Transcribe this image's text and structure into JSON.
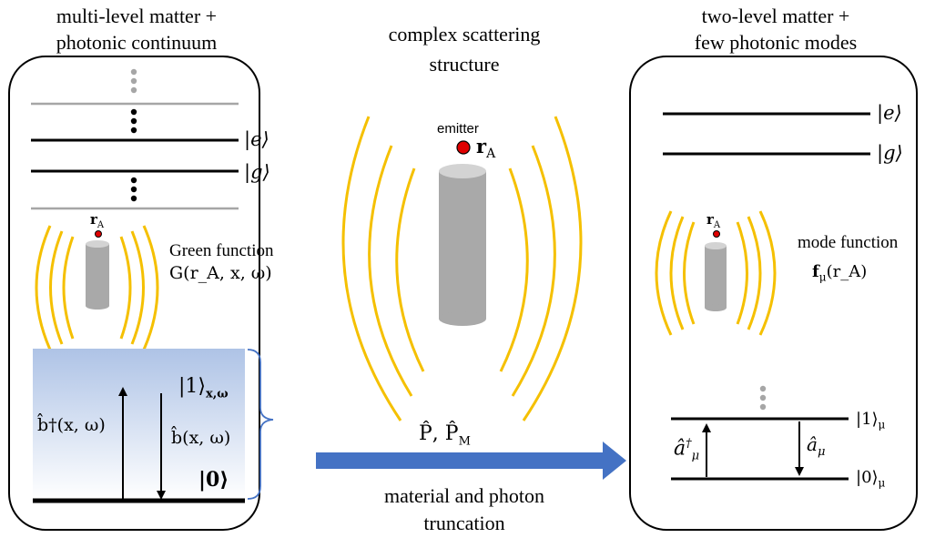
{
  "left_panel": {
    "title_line1": "multi-level matter +",
    "title_line2": "photonic continuum",
    "ket_e": "|e⟩",
    "ket_g": "|g⟩",
    "emitter_pos": "r",
    "emitter_pos_sub": "A",
    "green_label": "Green function",
    "green_expr": "G(r_A, x, ω)",
    "ket_one": "|1⟩",
    "ket_one_sub": "x,ω",
    "ket_zero": "|0⟩",
    "creation_op": "b̂†(x, ω)",
    "annihilation_op": "b̂(x, ω)"
  },
  "center_panel": {
    "title_line1": "complex scattering",
    "title_line2": "structure",
    "emitter_label": "emitter",
    "emitter_pos": "r",
    "emitter_pos_sub": "A",
    "projectors": "P̂, P̂",
    "projectors_sub": "M",
    "arrow_caption_line1": "material and photon",
    "arrow_caption_line2": "truncation"
  },
  "right_panel": {
    "title_line1": "two-level matter +",
    "title_line2": "few photonic modes",
    "ket_e": "|e⟩",
    "ket_g": "|g⟩",
    "emitter_pos": "r",
    "emitter_pos_sub": "A",
    "mode_label": "mode function",
    "mode_expr": "f",
    "mode_expr_sub": "μ",
    "mode_expr_arg": "(r_A)",
    "ket_one": "|1⟩",
    "ket_one_sub": "μ",
    "ket_zero": "|0⟩",
    "ket_zero_sub": "μ",
    "creation_op": "â",
    "creation_op_sup": "†",
    "creation_op_sub": "μ",
    "annihilation_op": "â",
    "annihilation_op_sub": "μ"
  },
  "colors": {
    "wave": "#F5C000",
    "cylinder": "#A9A9A9",
    "cylinder_top": "#D3D3D3",
    "emitter_dot": "#E00000",
    "arrow": "#4472C4",
    "brace": "#4472C4",
    "continuum_top": "#AEC3E6",
    "continuum_bottom": "#FFFFFF",
    "grey_line": "#A6A6A6"
  }
}
